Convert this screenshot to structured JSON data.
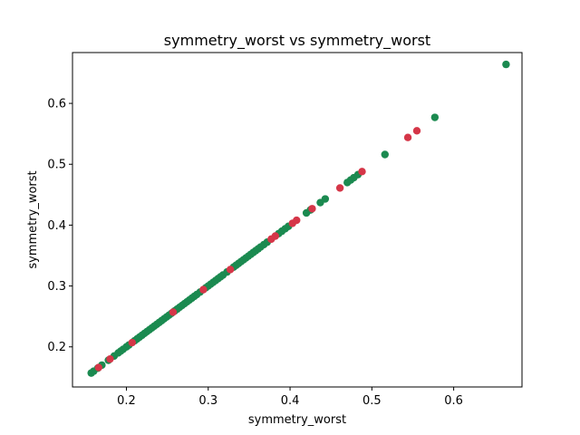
{
  "chart_data": {
    "type": "scatter",
    "title": "symmetry_worst vs symmetry_worst",
    "xlabel": "symmetry_worst",
    "ylabel": "symmetry_worst",
    "xlim": [
      0.1341,
      0.6835
    ],
    "ylim": [
      0.1341,
      0.6835
    ],
    "xticks": [
      0.2,
      0.3,
      0.4,
      0.5,
      0.6
    ],
    "yticks": [
      0.2,
      0.3,
      0.4,
      0.5,
      0.6
    ],
    "xtick_labels": [
      "0.2",
      "0.3",
      "0.4",
      "0.5",
      "0.6"
    ],
    "ytick_labels": [
      "0.2",
      "0.3",
      "0.4",
      "0.5",
      "0.6"
    ],
    "grid": false,
    "colors": {
      "green": "#1b8a50",
      "red": "#d53648"
    },
    "series": [
      {
        "color": "#1b8a50",
        "x": [
          0.157,
          0.16,
          0.165,
          0.17,
          0.178,
          0.185,
          0.19,
          0.193,
          0.196,
          0.2,
          0.203,
          0.21,
          0.213,
          0.216,
          0.219,
          0.222,
          0.225,
          0.228,
          0.231,
          0.234,
          0.237,
          0.24,
          0.243,
          0.246,
          0.249,
          0.252,
          0.255,
          0.259,
          0.262,
          0.265,
          0.268,
          0.271,
          0.274,
          0.277,
          0.28,
          0.283,
          0.286,
          0.29,
          0.297,
          0.3,
          0.303,
          0.306,
          0.309,
          0.312,
          0.315,
          0.318,
          0.323,
          0.331,
          0.334,
          0.337,
          0.34,
          0.343,
          0.346,
          0.349,
          0.352,
          0.355,
          0.358,
          0.361,
          0.364,
          0.368,
          0.372,
          0.386,
          0.39,
          0.394,
          0.398,
          0.42,
          0.425,
          0.437,
          0.443,
          0.47,
          0.474,
          0.478,
          0.483,
          0.516,
          0.577,
          0.664
        ],
        "y": [
          0.157,
          0.16,
          0.165,
          0.17,
          0.178,
          0.185,
          0.19,
          0.193,
          0.196,
          0.2,
          0.203,
          0.21,
          0.213,
          0.216,
          0.219,
          0.222,
          0.225,
          0.228,
          0.231,
          0.234,
          0.237,
          0.24,
          0.243,
          0.246,
          0.249,
          0.252,
          0.255,
          0.259,
          0.262,
          0.265,
          0.268,
          0.271,
          0.274,
          0.277,
          0.28,
          0.283,
          0.286,
          0.29,
          0.297,
          0.3,
          0.303,
          0.306,
          0.309,
          0.312,
          0.315,
          0.318,
          0.323,
          0.331,
          0.334,
          0.337,
          0.34,
          0.343,
          0.346,
          0.349,
          0.352,
          0.355,
          0.358,
          0.361,
          0.364,
          0.368,
          0.372,
          0.386,
          0.39,
          0.394,
          0.398,
          0.42,
          0.425,
          0.437,
          0.443,
          0.47,
          0.474,
          0.478,
          0.483,
          0.516,
          0.577,
          0.664
        ]
      },
      {
        "color": "#d53648",
        "x": [
          0.166,
          0.18,
          0.207,
          0.257,
          0.294,
          0.327,
          0.377,
          0.382,
          0.403,
          0.408,
          0.427,
          0.461,
          0.488,
          0.544,
          0.555
        ],
        "y": [
          0.166,
          0.18,
          0.207,
          0.257,
          0.294,
          0.327,
          0.377,
          0.382,
          0.403,
          0.408,
          0.427,
          0.461,
          0.488,
          0.544,
          0.555
        ]
      }
    ]
  }
}
